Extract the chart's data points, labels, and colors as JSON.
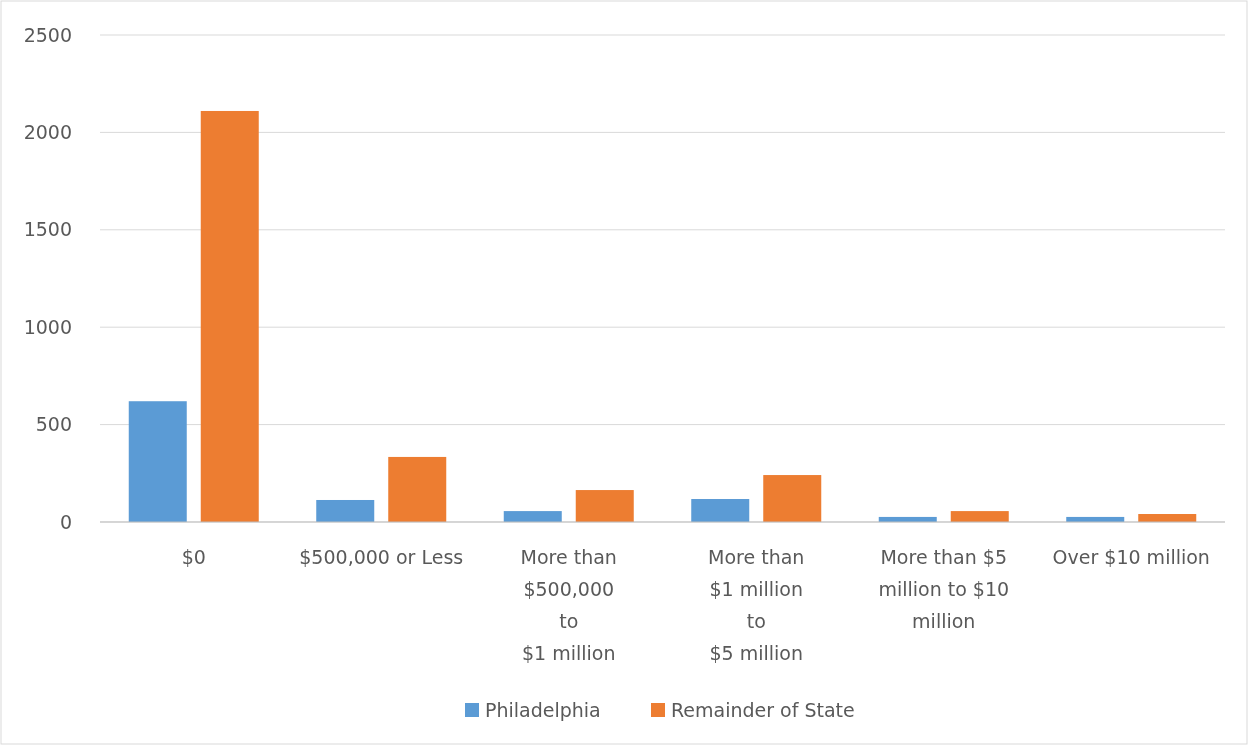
{
  "chart_data": {
    "type": "bar",
    "categories": [
      "$0",
      "$500,000 or Less",
      "More than\n$500,000\nto\n$1 million",
      "More than\n$1 million\nto\n$5 million",
      "More than $5\nmillion to $10\nmillion",
      "Over $10 million"
    ],
    "series": [
      {
        "name": "Philadelphia",
        "color": "#5b9bd5",
        "values": [
          620,
          113,
          56,
          118,
          26,
          26
        ]
      },
      {
        "name": "Remainder of State",
        "color": "#ed7d31",
        "values": [
          2110,
          334,
          164,
          241,
          56,
          41
        ]
      }
    ],
    "ylim": [
      0,
      2500
    ],
    "yticks": [
      0,
      500,
      1000,
      1500,
      2000,
      2500
    ],
    "grid": "y",
    "legend": "bottom"
  }
}
